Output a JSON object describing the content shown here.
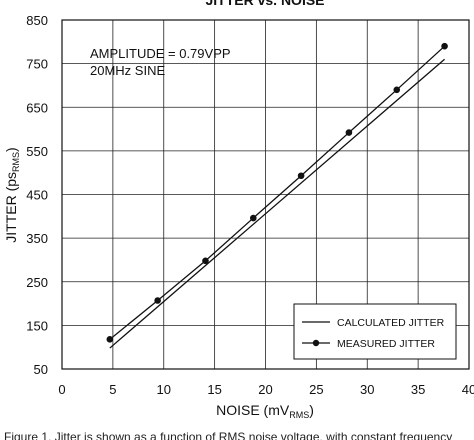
{
  "chart_data": {
    "type": "line",
    "title": "JITTER vs. NOISE",
    "xlabel": "NOISE (mV",
    "xlabel_sub": "RMS",
    "xlabel_close": ")",
    "ylabel": "JITTER (ps",
    "ylabel_sub": "RMS",
    "ylabel_close": ")",
    "xlim": [
      0,
      40
    ],
    "ylim": [
      50,
      850
    ],
    "x_ticks": [
      "0",
      "5",
      "10",
      "15",
      "20",
      "25",
      "30",
      "35",
      "40"
    ],
    "y_ticks": [
      "50",
      "150",
      "250",
      "350",
      "450",
      "550",
      "650",
      "750",
      "850"
    ],
    "grid": true,
    "annotations": [
      "AMPLITUDE = 0.79VPP",
      "20MHz SINE"
    ],
    "legend_position": "bottom-right",
    "series": [
      {
        "name": "CALCULATED JITTER",
        "style": "line",
        "x": [
          4.7,
          37.6
        ],
        "y": [
          98,
          760
        ]
      },
      {
        "name": "MEASURED JITTER",
        "style": "line-markers",
        "x": [
          4.7,
          9.4,
          14.1,
          18.8,
          23.5,
          28.2,
          32.9,
          37.6
        ],
        "y": [
          118,
          207,
          298,
          396,
          493,
          592,
          690,
          790
        ]
      }
    ]
  },
  "caption": "Figure 1. Jitter is shown as a function of RMS noise voltage, with constant frequency"
}
